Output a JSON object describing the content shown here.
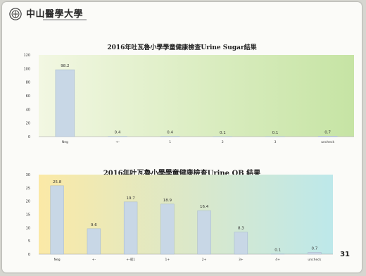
{
  "header": {
    "logo_text": "中山醫學大學",
    "logo_name": "university-logo"
  },
  "slide": {
    "page_number": "31"
  },
  "colors": {
    "bar_fill": "#c8d7e6",
    "bar_stroke": "#aabcd0",
    "chart1_bg_left": "#f2f7e2",
    "chart1_bg_right": "#c6e4a4",
    "chart2_bg_left": "#fbe9a6",
    "chart2_bg_right": "#bde8ea"
  },
  "chart_data": [
    {
      "type": "bar",
      "title": "2016年吐瓦魯小學學童健康檢查Urine Sugar結果",
      "categories": [
        "Neg",
        "+-",
        "1",
        "2",
        "3",
        "uncheck"
      ],
      "values": [
        98.2,
        0.4,
        0.4,
        0.1,
        0.1,
        0.7
      ],
      "value_labels": [
        "98.2",
        "0.4",
        "0.4",
        "0.1",
        "0.1",
        "0.7"
      ],
      "ylim": [
        0,
        120
      ],
      "yticks": [
        0,
        20,
        40,
        60,
        80,
        100,
        120
      ],
      "grid": false,
      "xlabel": "",
      "ylabel": ""
    },
    {
      "type": "bar",
      "title": "2016年吐瓦魯小學學童健康檢查Urine OB 結果",
      "categories": [
        "Neg",
        "+-",
        "+-或1",
        "1+",
        "2+",
        "3+",
        "4+",
        "uncheck"
      ],
      "values": [
        25.8,
        9.6,
        19.7,
        18.9,
        16.4,
        8.3,
        0.1,
        0.7
      ],
      "value_labels": [
        "25.8",
        "9.6",
        "19.7",
        "18.9",
        "16.4",
        "8.3",
        "0.1",
        "0.7"
      ],
      "ylim": [
        0,
        30
      ],
      "yticks": [
        0,
        5,
        10,
        15,
        20,
        25,
        30
      ],
      "grid": false,
      "xlabel": "",
      "ylabel": ""
    }
  ]
}
